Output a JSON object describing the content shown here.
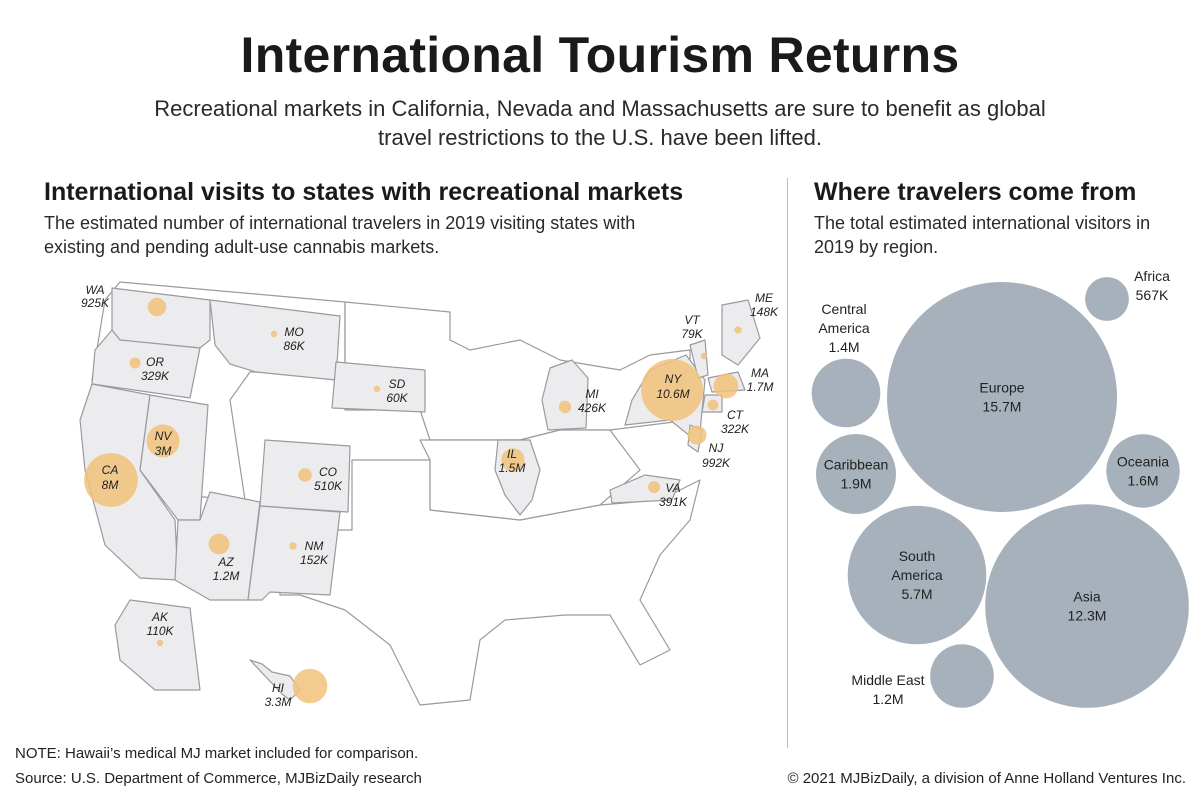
{
  "title": "International Tourism Returns",
  "subtitle": "Recreational markets in California, Nevada and Massachusetts are sure to benefit as global travel restrictions to the U.S. have been lifted.",
  "map": {
    "title": "International visits to states with recreational markets",
    "description": "The estimated number of international travelers in 2019 visiting states with existing and pending adult-use cannabis markets.",
    "states": [
      {
        "code": "WA",
        "value": "925K",
        "visitors_k": 925
      },
      {
        "code": "OR",
        "value": "329K",
        "visitors_k": 329
      },
      {
        "code": "CA",
        "value": "8M",
        "visitors_k": 8000
      },
      {
        "code": "NV",
        "value": "3M",
        "visitors_k": 3000
      },
      {
        "code": "AZ",
        "value": "1.2M",
        "visitors_k": 1200
      },
      {
        "code": "MO",
        "value": "86K",
        "visitors_k": 86
      },
      {
        "code": "SD",
        "value": "60K",
        "visitors_k": 60
      },
      {
        "code": "CO",
        "value": "510K",
        "visitors_k": 510
      },
      {
        "code": "NM",
        "value": "152K",
        "visitors_k": 152
      },
      {
        "code": "IL",
        "value": "1.5M",
        "visitors_k": 1500
      },
      {
        "code": "MI",
        "value": "426K",
        "visitors_k": 426
      },
      {
        "code": "NY",
        "value": "10.6M",
        "visitors_k": 10600
      },
      {
        "code": "VT",
        "value": "79K",
        "visitors_k": 79
      },
      {
        "code": "ME",
        "value": "148K",
        "visitors_k": 148
      },
      {
        "code": "MA",
        "value": "1.7M",
        "visitors_k": 1700
      },
      {
        "code": "CT",
        "value": "322K",
        "visitors_k": 322
      },
      {
        "code": "NJ",
        "value": "992K",
        "visitors_k": 992
      },
      {
        "code": "VA",
        "value": "391K",
        "visitors_k": 391
      },
      {
        "code": "AK",
        "value": "110K",
        "visitors_k": 110
      },
      {
        "code": "HI",
        "value": "3.3M",
        "visitors_k": 3300
      }
    ]
  },
  "bubbles": {
    "title": "Where travelers come from",
    "description": "The total estimated international visitors in 2019 by region.",
    "regions": [
      {
        "name": "Europe",
        "value": "15.7M",
        "visitors_m": 15.7
      },
      {
        "name": "Asia",
        "value": "12.3M",
        "visitors_m": 12.3
      },
      {
        "name": "South America",
        "value": "5.7M",
        "visitors_m": 5.7
      },
      {
        "name": "Caribbean",
        "value": "1.9M",
        "visitors_m": 1.9
      },
      {
        "name": "Oceania",
        "value": "1.6M",
        "visitors_m": 1.6
      },
      {
        "name": "Central America",
        "value": "1.4M",
        "visitors_m": 1.4
      },
      {
        "name": "Middle East",
        "value": "1.2M",
        "visitors_m": 1.2
      },
      {
        "name": "Africa",
        "value": "567K",
        "visitors_m": 0.567
      }
    ]
  },
  "footer": {
    "note": "NOTE: Hawaii’s medical MJ market included for comparison.",
    "source": "Source: U.S. Department of Commerce, MJBizDaily research",
    "copyright": "© 2021 MJBizDaily, a division of Anne Holland Ventures Inc."
  },
  "colors": {
    "state_fill": "#ececee",
    "state_fill_plain": "#ffffff",
    "state_stroke": "#9a9a9f",
    "state_bubble": "#f2c27a",
    "region_bubble": "#a7b1bb",
    "divider": "#bdbdbd"
  }
}
